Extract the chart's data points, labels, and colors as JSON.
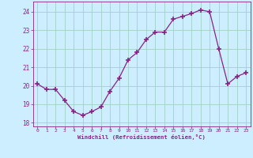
{
  "x": [
    0,
    1,
    2,
    3,
    4,
    5,
    6,
    7,
    8,
    9,
    10,
    11,
    12,
    13,
    14,
    15,
    16,
    17,
    18,
    19,
    20,
    21,
    22,
    23
  ],
  "y": [
    20.1,
    19.8,
    19.8,
    19.2,
    18.6,
    18.4,
    18.6,
    18.85,
    19.7,
    20.4,
    21.4,
    21.8,
    22.5,
    22.9,
    22.9,
    23.6,
    23.75,
    23.9,
    24.1,
    24.0,
    22.0,
    20.1,
    20.5,
    20.7
  ],
  "line_color": "#882288",
  "marker": "+",
  "marker_size": 4,
  "marker_lw": 1.2,
  "bg_color": "#cceeff",
  "grid_color": "#99ccbb",
  "xlabel": "Windchill (Refroidissement éolien,°C)",
  "tick_color": "#882288",
  "ylim": [
    17.8,
    24.55
  ],
  "xlim": [
    -0.5,
    23.5
  ],
  "yticks": [
    18,
    19,
    20,
    21,
    22,
    23,
    24
  ],
  "xticks": [
    0,
    1,
    2,
    3,
    4,
    5,
    6,
    7,
    8,
    9,
    10,
    11,
    12,
    13,
    14,
    15,
    16,
    17,
    18,
    19,
    20,
    21,
    22,
    23
  ]
}
